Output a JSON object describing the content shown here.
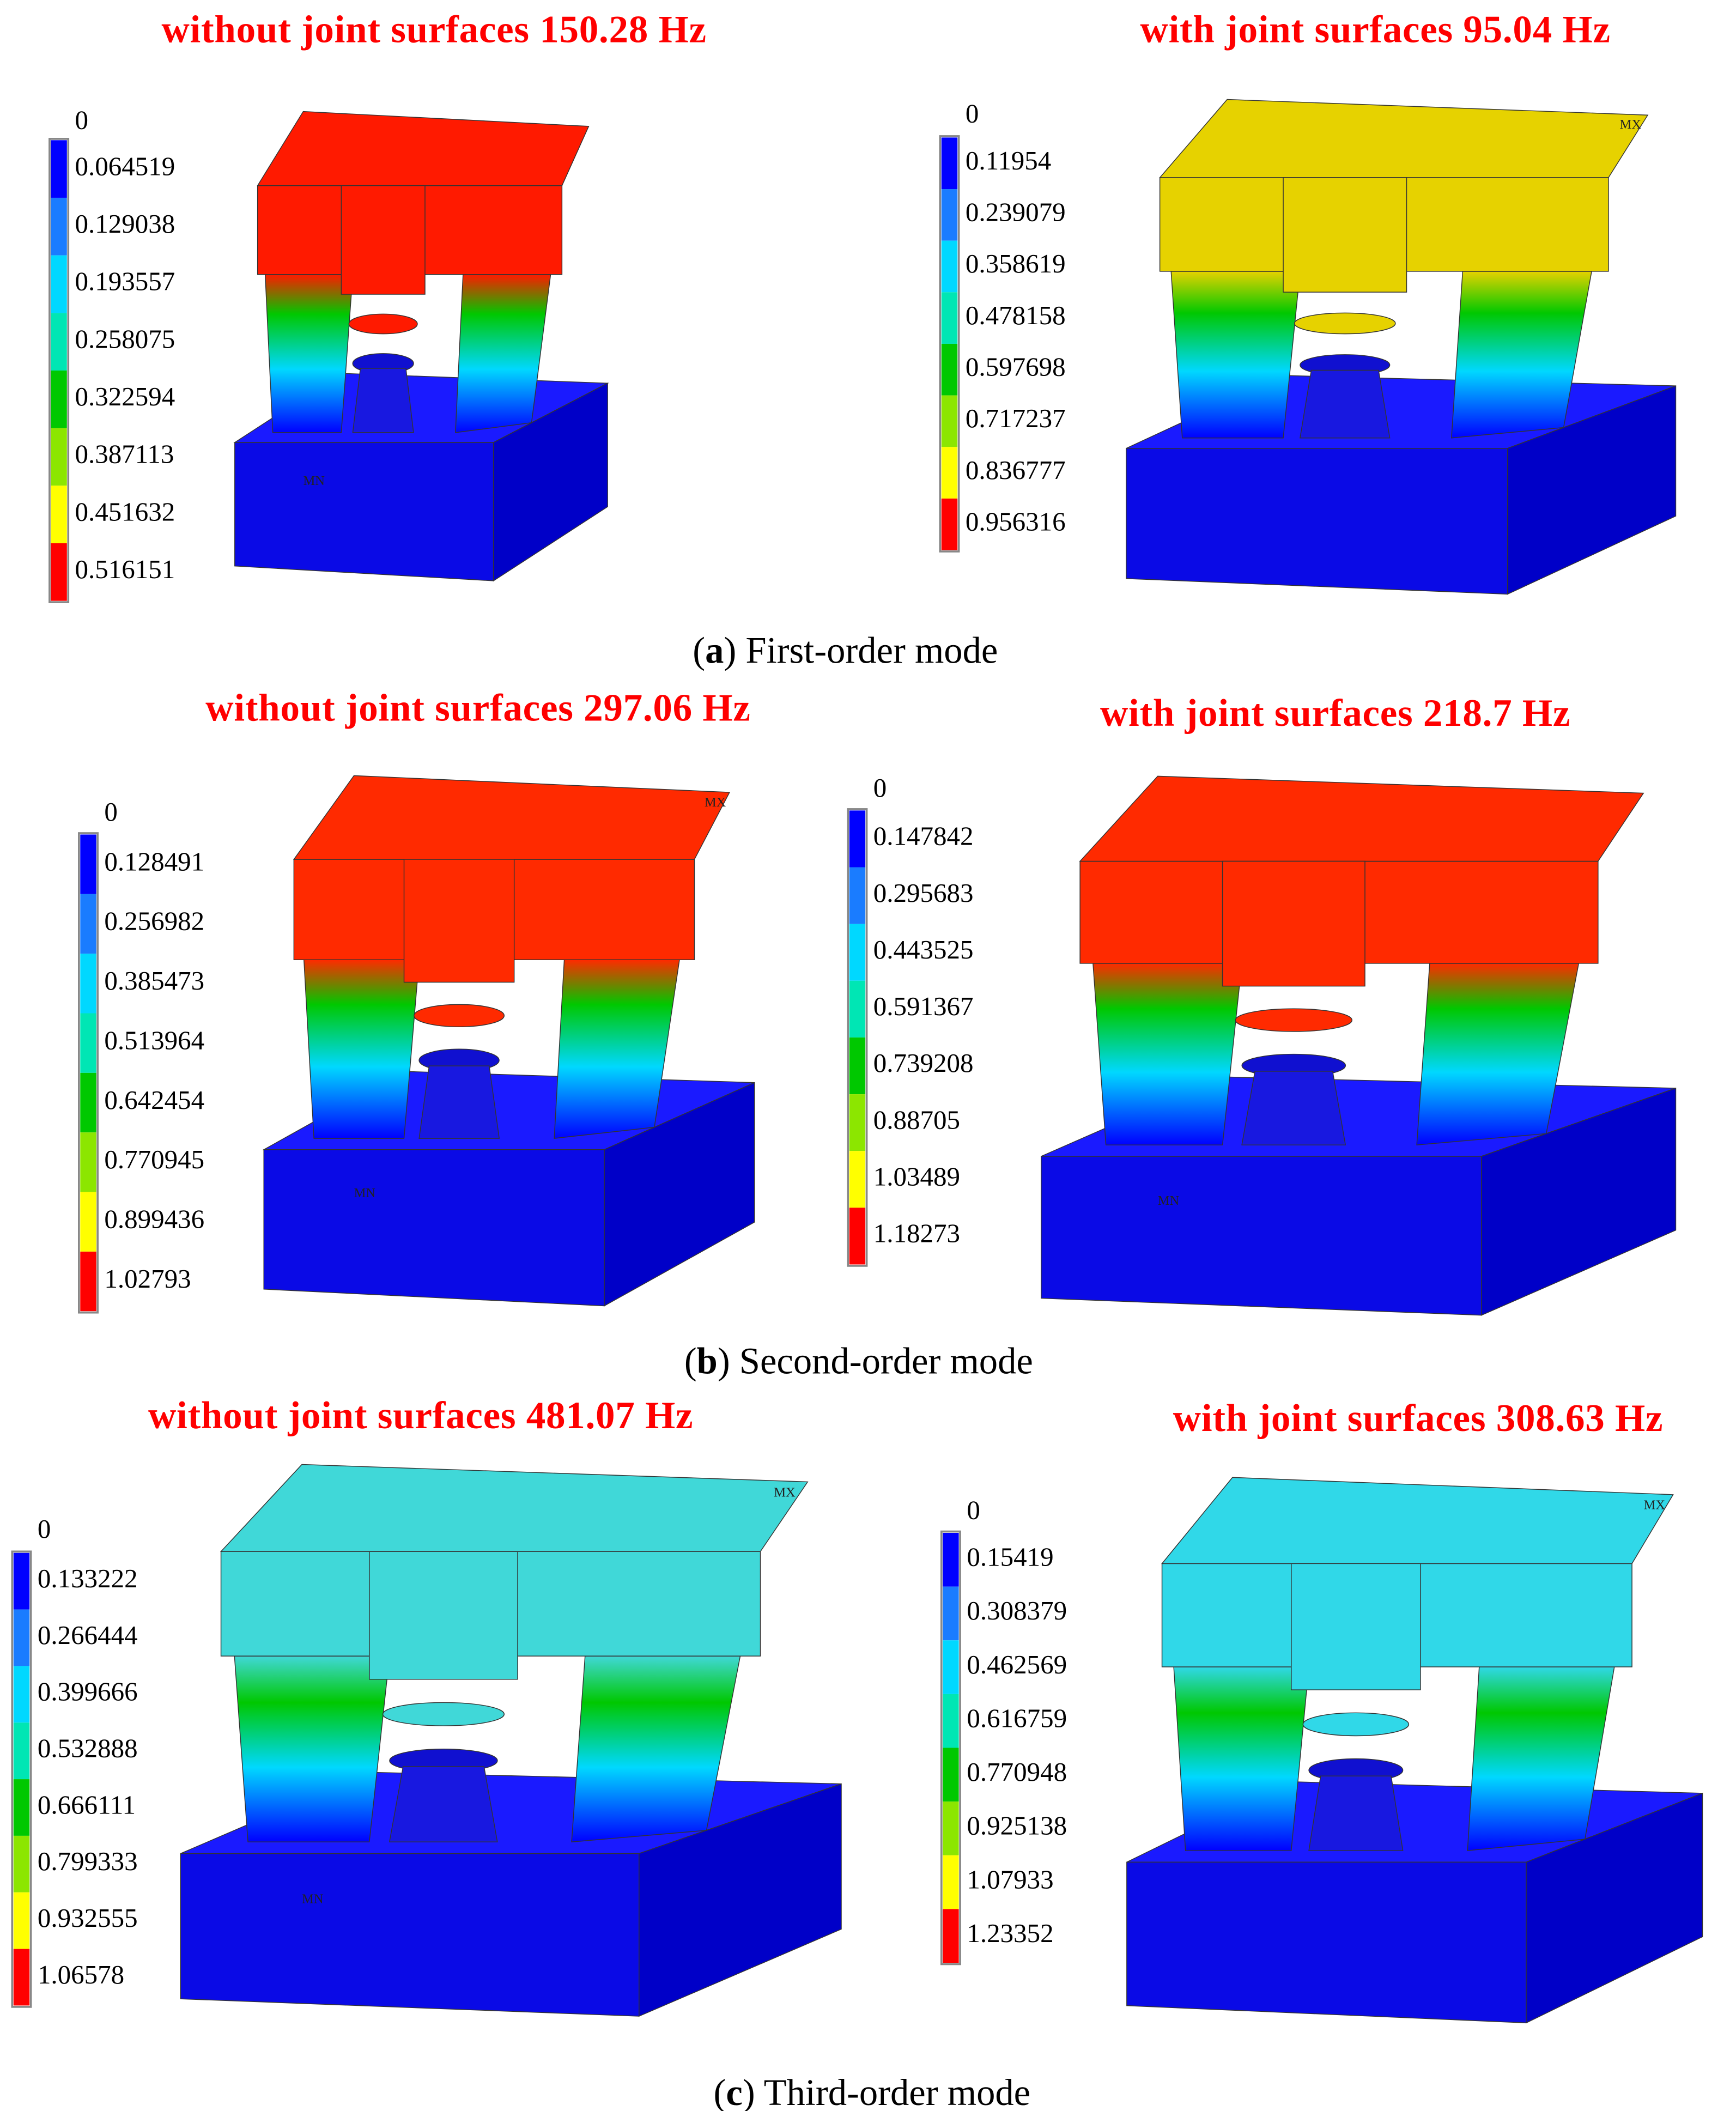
{
  "legend_colors": [
    "#0000ff",
    "#1a7cff",
    "#00d8ff",
    "#00e6b4",
    "#00c800",
    "#8ce600",
    "#ffff00",
    "#ff0000"
  ],
  "rows": [
    {
      "panels": [
        {
          "title": "without  joint surfaces 150.28 Hz",
          "legend": [
            "0",
            "0.064519",
            "0.129038",
            "0.193557",
            "0.258075",
            "0.322594",
            "0.387113",
            "0.451632",
            "0.516151"
          ],
          "markers": [
            "MN"
          ],
          "peak_color": "#ff1a00"
        },
        {
          "title": "with  joint surfaces 95.04 Hz",
          "legend": [
            "0",
            "0.11954",
            "0.239079",
            "0.358619",
            "0.478158",
            "0.597698",
            "0.717237",
            "0.836777",
            "0.956316"
          ],
          "markers": [
            "MX"
          ],
          "peak_color": "#e6d200"
        }
      ],
      "caption": {
        "open": "(",
        "label": "a",
        "text": ") First-order mode"
      }
    },
    {
      "panels": [
        {
          "title": "without  joint surfaces 297.06 Hz",
          "legend": [
            "0",
            "0.128491",
            "0.256982",
            "0.385473",
            "0.513964",
            "0.642454",
            "0.770945",
            "0.899436",
            "1.02793"
          ],
          "markers": [
            "MX",
            "MN"
          ],
          "peak_color": "#ff2a00"
        },
        {
          "title": "with  joint surfaces 218.7 Hz",
          "legend": [
            "0",
            "0.147842",
            "0.295683",
            "0.443525",
            "0.591367",
            "0.739208",
            "0.88705",
            "1.03489",
            "1.18273"
          ],
          "markers": [
            "MN"
          ],
          "peak_color": "#ff2a00"
        }
      ],
      "caption": {
        "open": "(",
        "label": "b",
        "text": ") Second-order mode"
      }
    },
    {
      "panels": [
        {
          "title": "without  joint surfaces 481.07 Hz",
          "legend": [
            "0",
            "0.133222",
            "0.266444",
            "0.399666",
            "0.532888",
            "0.666111",
            "0.799333",
            "0.932555",
            "1.06578"
          ],
          "markers": [
            "MX",
            "MN"
          ],
          "peak_color": "#40d8d8"
        },
        {
          "title": "with  joint surfaces 308.63 Hz",
          "legend": [
            "0",
            "0.15419",
            "0.308379",
            "0.462569",
            "0.616759",
            "0.770948",
            "0.925138",
            "1.07933",
            "1.23352"
          ],
          "markers": [
            "MX"
          ],
          "peak_color": "#30d8e8"
        }
      ],
      "caption": {
        "open": "(",
        "label": "c",
        "text": ") Third-order mode"
      }
    }
  ]
}
